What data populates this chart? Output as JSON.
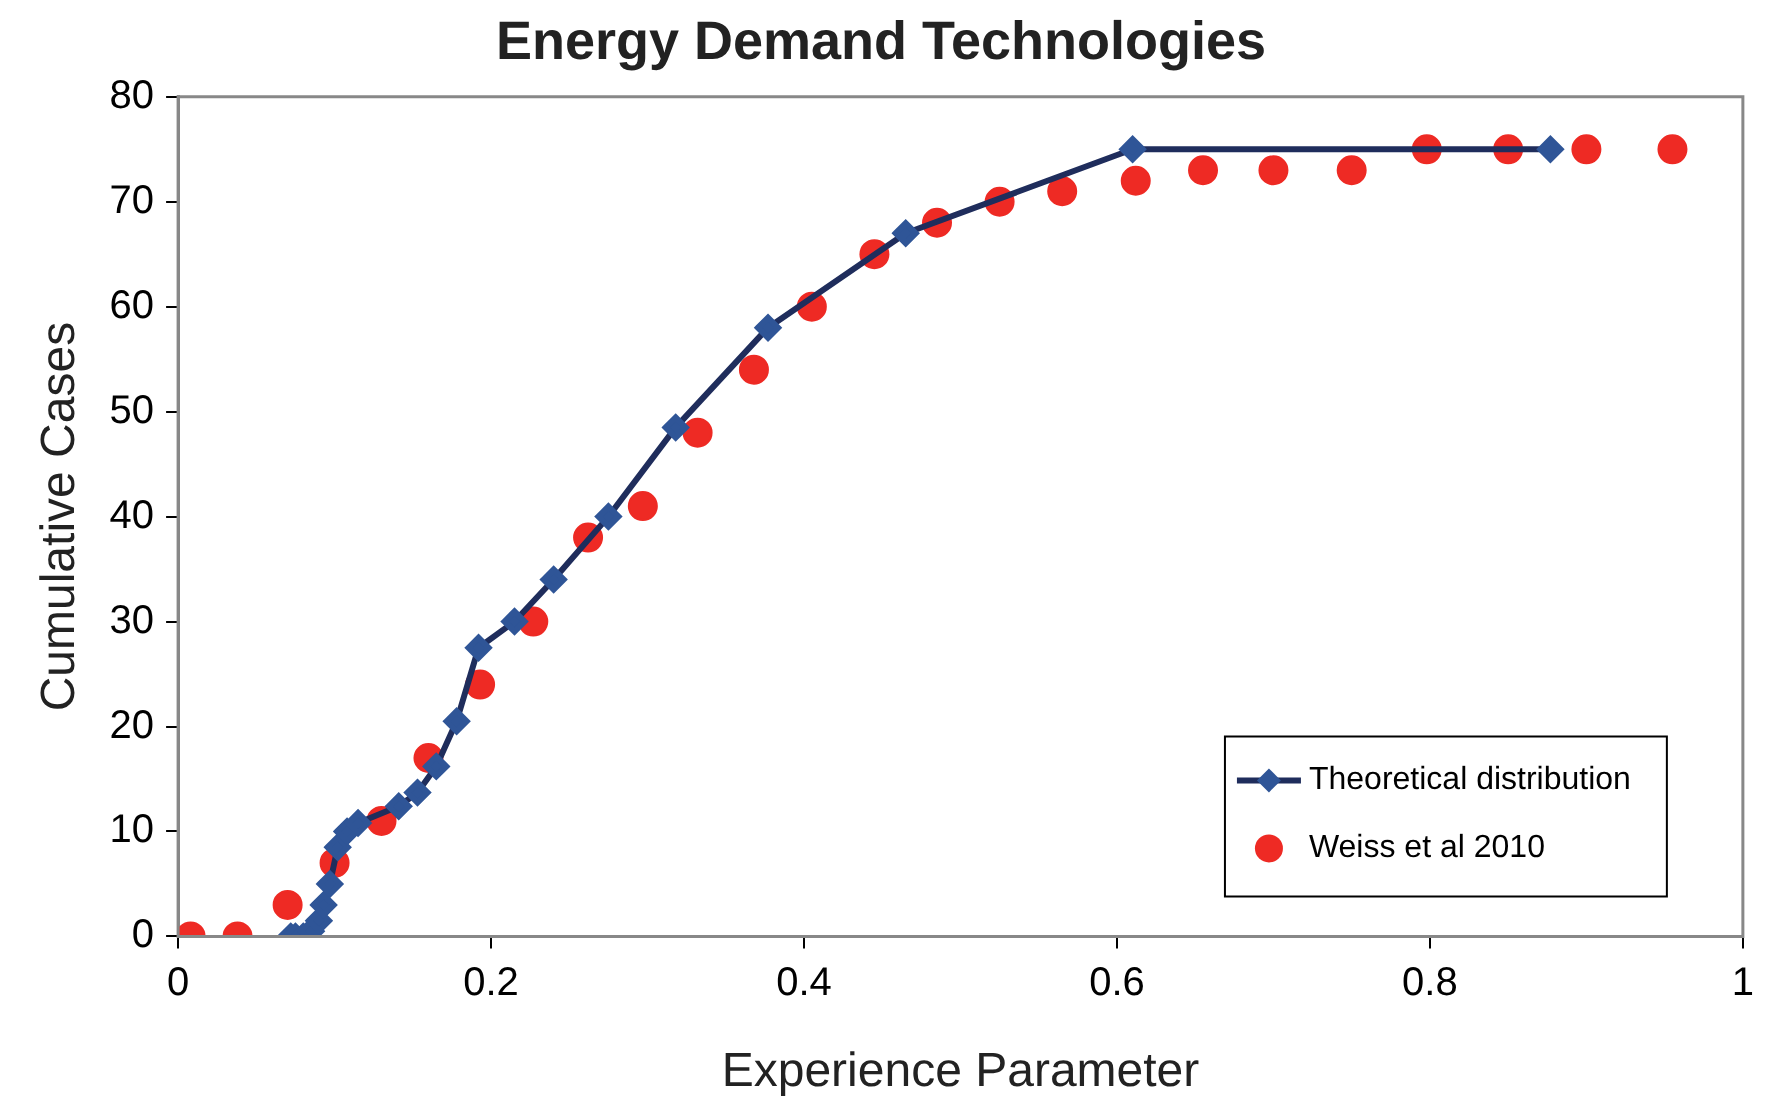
{
  "chart_data": {
    "type": "scatter",
    "title": "Energy Demand Technologies",
    "xlabel": "Experience Parameter",
    "ylabel": "Cumulative Cases",
    "xlim": [
      0,
      1
    ],
    "xticks": [
      0,
      0.2,
      0.4,
      0.6,
      0.8,
      1
    ],
    "ylim": [
      0,
      80
    ],
    "yticks": [
      0,
      10,
      20,
      30,
      40,
      50,
      60,
      70,
      80
    ],
    "grid": false,
    "legend": "bottom right",
    "series": [
      {
        "name": "Theoretical distribution",
        "type": "line",
        "color": "#2f5597",
        "marker": "diamond",
        "line_style": "solid",
        "x": [
          0.072,
          0.075,
          0.08,
          0.085,
          0.09,
          0.093,
          0.097,
          0.102,
          0.108,
          0.115,
          0.141,
          0.153,
          0.165,
          0.178,
          0.192,
          0.215,
          0.24,
          0.275,
          0.318,
          0.377,
          0.465,
          0.61,
          0.877
        ],
        "values": [
          0,
          0,
          0,
          0.5,
          1.5,
          3,
          5,
          8.5,
          10,
          10.8,
          12.4,
          13.7,
          16.2,
          20.5,
          27.5,
          30,
          34,
          40,
          48.5,
          58,
          67,
          75,
          75
        ]
      },
      {
        "name": "Weiss et al 2010",
        "type": "scatter",
        "color": "#ee2a24",
        "marker": "circle",
        "x": [
          0.008,
          0.038,
          0.07,
          0.1,
          0.13,
          0.16,
          0.193,
          0.227,
          0.262,
          0.297,
          0.332,
          0.368,
          0.405,
          0.445,
          0.485,
          0.525,
          0.565,
          0.612,
          0.655,
          0.7,
          0.75,
          0.798,
          0.85,
          0.9,
          0.955
        ],
        "values": [
          0,
          0,
          3,
          7,
          11,
          17,
          24,
          30,
          38,
          41,
          48,
          54,
          60,
          65,
          68,
          70,
          71,
          72,
          73,
          73,
          73,
          75,
          75,
          75,
          75
        ]
      }
    ]
  }
}
